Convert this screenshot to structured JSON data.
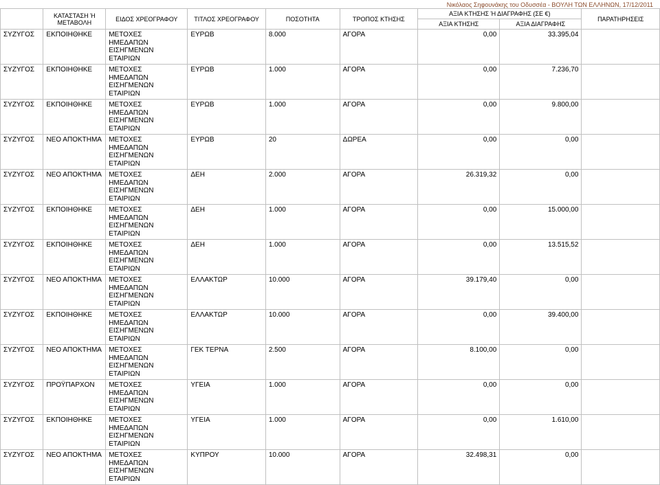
{
  "header_note": "Νικόλαος Σηφουνάκης του Οδυσσέα - ΒΟΥΛΗ ΤΩΝ ΕΛΛΗΝΩΝ, 17/12/2011",
  "columns": {
    "status": "ΚΑΤΑΣΤΑΣΗ Ή ΜΕΤΑΒΟΛΗ",
    "type": "ΕΙΔΟΣ ΧΡΕΟΓΡΑΦΟΥ",
    "title": "ΤΙΤΛΟΣ ΧΡΕΟΓΡΑΦΟΥ",
    "qty": "ΠΟΣΟΤΗΤΑ",
    "method": "ΤΡΟΠΟΣ ΚΤΗΣΗΣ",
    "value_group": "ΑΞΙΑ ΚΤΗΣΗΣ Ή ΔΙΑΓΡΑΦΗΣ (ΣΕ €)",
    "val1": "ΑΞΙΑ ΚΤΗΣΗΣ",
    "val2": "ΑΞΙΑ ΔΙΑΓΡΑΦΗΣ",
    "notes": "ΠΑΡΑΤΗΡΗΣΕΙΣ"
  },
  "security_type": "ΜΕΤΟΧΕΣ\nΗΜΕΔΑΠΩΝ\nΕΙΣΗΓΜΕΝΩΝ\nΕΤΑΙΡΙΩΝ",
  "owner": "ΣΥΖΥΓΟΣ",
  "rows": [
    {
      "status": "ΕΚΠΟΙΗΘΗΚΕ",
      "title": "ΕΥΡΩΒ",
      "qty": "8.000",
      "method": "ΑΓΟΡΑ",
      "v1": "0,00",
      "v2": "33.395,04"
    },
    {
      "status": "ΕΚΠΟΙΗΘΗΚΕ",
      "title": "ΕΥΡΩΒ",
      "qty": "1.000",
      "method": "ΑΓΟΡΑ",
      "v1": "0,00",
      "v2": "7.236,70"
    },
    {
      "status": "ΕΚΠΟΙΗΘΗΚΕ",
      "title": "ΕΥΡΩΒ",
      "qty": "1.000",
      "method": "ΑΓΟΡΑ",
      "v1": "0,00",
      "v2": "9.800,00"
    },
    {
      "status": "ΝΕΟ ΑΠΟΚΤΗΜΑ",
      "title": "ΕΥΡΩΒ",
      "qty": "20",
      "method": "ΔΩΡΕΑ",
      "v1": "0,00",
      "v2": "0,00"
    },
    {
      "status": "ΝΕΟ ΑΠΟΚΤΗΜΑ",
      "title": "ΔΕΗ",
      "qty": "2.000",
      "method": "ΑΓΟΡΑ",
      "v1": "26.319,32",
      "v2": "0,00"
    },
    {
      "status": "ΕΚΠΟΙΗΘΗΚΕ",
      "title": "ΔΕΗ",
      "qty": "1.000",
      "method": "ΑΓΟΡΑ",
      "v1": "0,00",
      "v2": "15.000,00"
    },
    {
      "status": "ΕΚΠΟΙΗΘΗΚΕ",
      "title": "ΔΕΗ",
      "qty": "1.000",
      "method": "ΑΓΟΡΑ",
      "v1": "0,00",
      "v2": "13.515,52"
    },
    {
      "status": "ΝΕΟ ΑΠΟΚΤΗΜΑ",
      "title": "ΕΛΛΑΚΤΩΡ",
      "qty": "10.000",
      "method": "ΑΓΟΡΑ",
      "v1": "39.179,40",
      "v2": "0,00"
    },
    {
      "status": "ΕΚΠΟΙΗΘΗΚΕ",
      "title": "ΕΛΛΑΚΤΩΡ",
      "qty": "10.000",
      "method": "ΑΓΟΡΑ",
      "v1": "0,00",
      "v2": "39.400,00"
    },
    {
      "status": "ΝΕΟ ΑΠΟΚΤΗΜΑ",
      "title": "ΓΕΚ ΤΕΡΝΑ",
      "qty": "2.500",
      "method": "ΑΓΟΡΑ",
      "v1": "8.100,00",
      "v2": "0,00"
    },
    {
      "status": "ΠΡΟΫΠΑΡΧΟΝ",
      "title": "ΥΓΕΙΑ",
      "qty": "1.000",
      "method": "ΑΓΟΡΑ",
      "v1": "0,00",
      "v2": "0,00"
    },
    {
      "status": "ΕΚΠΟΙΗΘΗΚΕ",
      "title": "ΥΓΕΙΑ",
      "qty": "1.000",
      "method": "ΑΓΟΡΑ",
      "v1": "0,00",
      "v2": "1.610,00"
    },
    {
      "status": "ΝΕΟ ΑΠΟΚΤΗΜΑ",
      "title": "ΚΥΠΡΟΥ",
      "qty": "10.000",
      "method": "ΑΓΟΡΑ",
      "v1": "32.498,31",
      "v2": "0,00"
    }
  ],
  "colors": {
    "border": "#c0c0c0",
    "text": "#000000",
    "header_note": "#8a4a2a",
    "background": "#ffffff"
  },
  "fontsize_header": 9,
  "fontsize_body": 10
}
